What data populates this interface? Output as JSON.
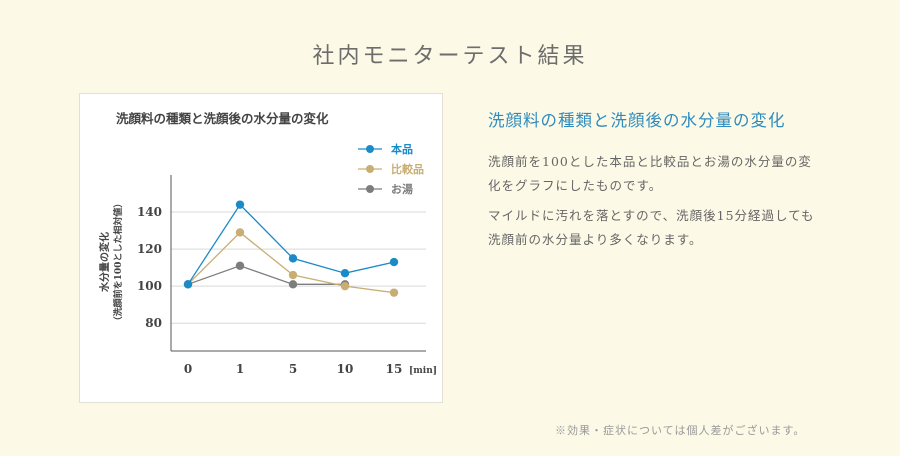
{
  "page": {
    "title": "社内モニターテスト結果",
    "heading": "洗顔料の種類と洗顔後の水分量の変化",
    "paragraphs": [
      "洗顔前を100とした本品と比較品とお湯の水分量の変化をグラフにしたものです。",
      "マイルドに汚れを落とすので、洗顔後15分経過しても洗顔前の水分量より多くなります。"
    ],
    "note": "※効果・症状については個人差がございます。"
  },
  "chart_data": {
    "type": "line",
    "title": "洗顔料の種類と洗顔後の水分量の変化",
    "ylabel": "水分量の変化",
    "ylabel_sub": "（洗顔前を100とした相対値）",
    "xlabel_unit": "[min]",
    "categories": [
      "0",
      "1",
      "5",
      "10",
      "15"
    ],
    "y_ticks": [
      80,
      100,
      120,
      140
    ],
    "ylim": [
      65,
      160
    ],
    "grid": true,
    "legend_position": "top-right",
    "series": [
      {
        "name": "本品",
        "color": "#1b8ac9",
        "values": [
          101,
          144,
          115,
          107,
          113
        ]
      },
      {
        "name": "比較品",
        "color": "#c9ae73",
        "values": [
          101,
          129,
          106,
          100,
          96.5
        ]
      },
      {
        "name": "お湯",
        "color": "#7d7d7d",
        "values": [
          101,
          111,
          101,
          101,
          null
        ]
      }
    ]
  }
}
